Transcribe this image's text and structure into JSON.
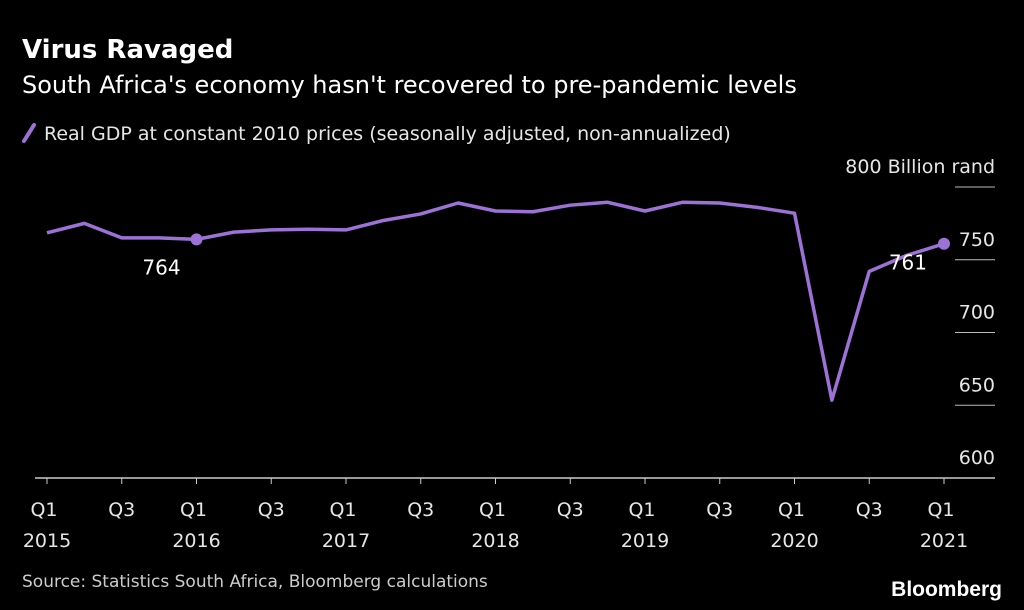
{
  "chart_data": {
    "type": "line",
    "title": "Virus Ravaged",
    "subtitle": "South Africa's economy hasn't recovered to pre-pandemic levels",
    "source": "Source: Statistics South Africa, Bloomberg calculations",
    "brand": "Bloomberg",
    "categories": [
      "Q1 2015",
      null,
      "Q3",
      null,
      "Q1 2016",
      null,
      "Q3",
      null,
      "Q1 2017",
      null,
      "Q3",
      null,
      "Q1 2018",
      null,
      "Q3",
      null,
      "Q1 2019",
      null,
      "Q3",
      null,
      "Q1 2020",
      null,
      "Q3",
      null,
      "Q1 2021"
    ],
    "series": [
      {
        "name": "Real GDP at constant 2010 prices (seasonally adjusted, non-annualized)",
        "color": "#9d72d6",
        "values": [
          768.5,
          775,
          765,
          765,
          764,
          769,
          770.5,
          771,
          770.5,
          777,
          781.5,
          789,
          783.5,
          783,
          787.5,
          789.5,
          783.5,
          789.5,
          789,
          786,
          782,
          653.5,
          742,
          753,
          761
        ],
        "value_labels": [
          null,
          null,
          null,
          null,
          "764",
          null,
          null,
          null,
          null,
          null,
          null,
          null,
          null,
          null,
          null,
          null,
          null,
          null,
          null,
          null,
          null,
          null,
          null,
          null,
          "761"
        ]
      }
    ],
    "ylim": [
      600,
      800
    ],
    "yticks": [
      600,
      650,
      700,
      750,
      {
        "value": 800,
        "label": "800 Billion rand"
      }
    ],
    "grid": true
  }
}
